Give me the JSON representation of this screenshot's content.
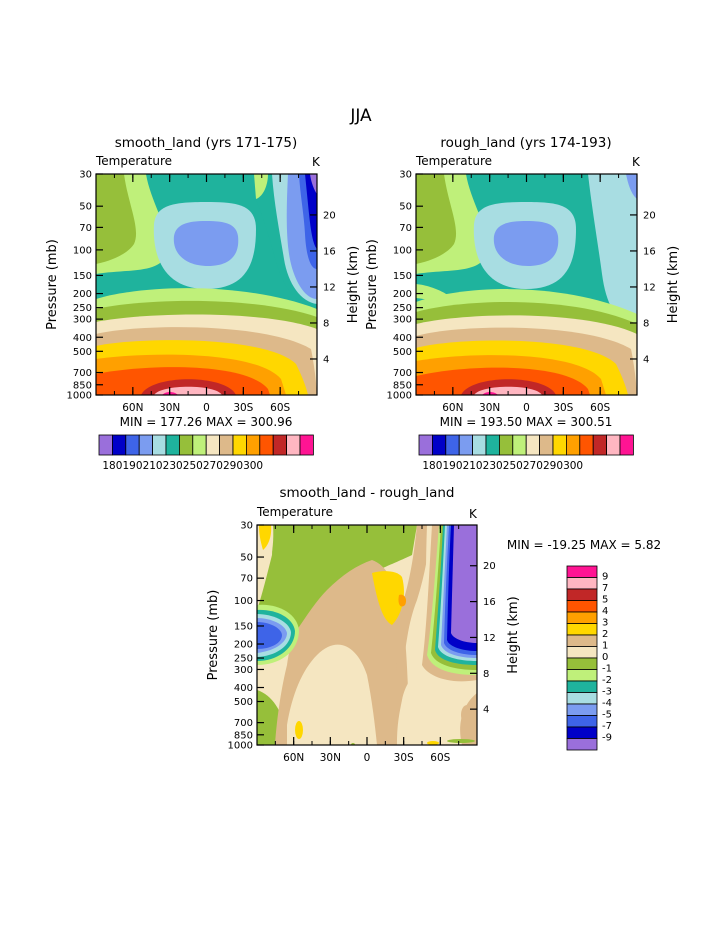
{
  "title": "JJA",
  "chart_data": [
    {
      "type": "contour",
      "title": "smooth_land (yrs 171-175)",
      "variable": "Temperature",
      "units": "K",
      "ylabel": "Pressure (mb)",
      "ylabel_right": "Height (km)",
      "x_ticks": [
        "60N",
        "30N",
        "0",
        "30S",
        "60S"
      ],
      "pressure_ticks": [
        "30",
        "50",
        "70",
        "100",
        "150",
        "200",
        "250",
        "300",
        "400",
        "500",
        "700",
        "850",
        "1000"
      ],
      "height_ticks": [
        "4",
        "8",
        "12",
        "16",
        "20"
      ],
      "stats": "MIN = 177.26   MAX = 300.96",
      "colorbar_labels": [
        "180",
        "190",
        "210",
        "230",
        "250",
        "270",
        "290",
        "300"
      ]
    },
    {
      "type": "contour",
      "title": "rough_land (yrs 174-193)",
      "variable": "Temperature",
      "units": "K",
      "ylabel": "Pressure (mb)",
      "ylabel_right": "Height (km)",
      "x_ticks": [
        "60N",
        "30N",
        "0",
        "30S",
        "60S"
      ],
      "pressure_ticks": [
        "30",
        "50",
        "70",
        "100",
        "150",
        "200",
        "250",
        "300",
        "400",
        "500",
        "700",
        "850",
        "1000"
      ],
      "height_ticks": [
        "4",
        "8",
        "12",
        "16",
        "20"
      ],
      "stats": "MIN = 193.50   MAX = 300.51",
      "colorbar_labels": [
        "180",
        "190",
        "210",
        "230",
        "250",
        "270",
        "290",
        "300"
      ]
    },
    {
      "type": "contour",
      "title": "smooth_land - rough_land",
      "variable": "Temperature",
      "units": "K",
      "ylabel": "Pressure (mb)",
      "ylabel_right": "Height (km)",
      "x_ticks": [
        "60N",
        "30N",
        "0",
        "30S",
        "60S"
      ],
      "pressure_ticks": [
        "30",
        "50",
        "70",
        "100",
        "150",
        "200",
        "250",
        "300",
        "400",
        "500",
        "700",
        "850",
        "1000"
      ],
      "height_ticks": [
        "4",
        "8",
        "12",
        "16",
        "20"
      ],
      "stats": "MIN = -19.25   MAX =    5.82",
      "colorbar_labels": [
        "9",
        "7",
        "5",
        "4",
        "3",
        "2",
        "1",
        "0",
        "-1",
        "-2",
        "-3",
        "-4",
        "-5",
        "-7",
        "-9"
      ]
    }
  ],
  "palette": {
    "temp": [
      "#9a6fdb",
      "#0000c8",
      "#3e64e8",
      "#7b9cf0",
      "#a8dde2",
      "#1fb39d",
      "#96bf3a",
      "#bff07a",
      "#f5e6c1",
      "#ddb98a",
      "#ffd700",
      "#ffa000",
      "#ff5500",
      "#c12727",
      "#ffb6c1",
      "#ff1493"
    ],
    "diff": [
      "#ff1493",
      "#ffb6c1",
      "#c12727",
      "#ff5500",
      "#ffa000",
      "#ffd700",
      "#ddb98a",
      "#f5e6c1",
      "#96bf3a",
      "#bff07a",
      "#1fb39d",
      "#a8dde2",
      "#7b9cf0",
      "#3e64e8",
      "#0000c8",
      "#9a6fdb"
    ]
  }
}
